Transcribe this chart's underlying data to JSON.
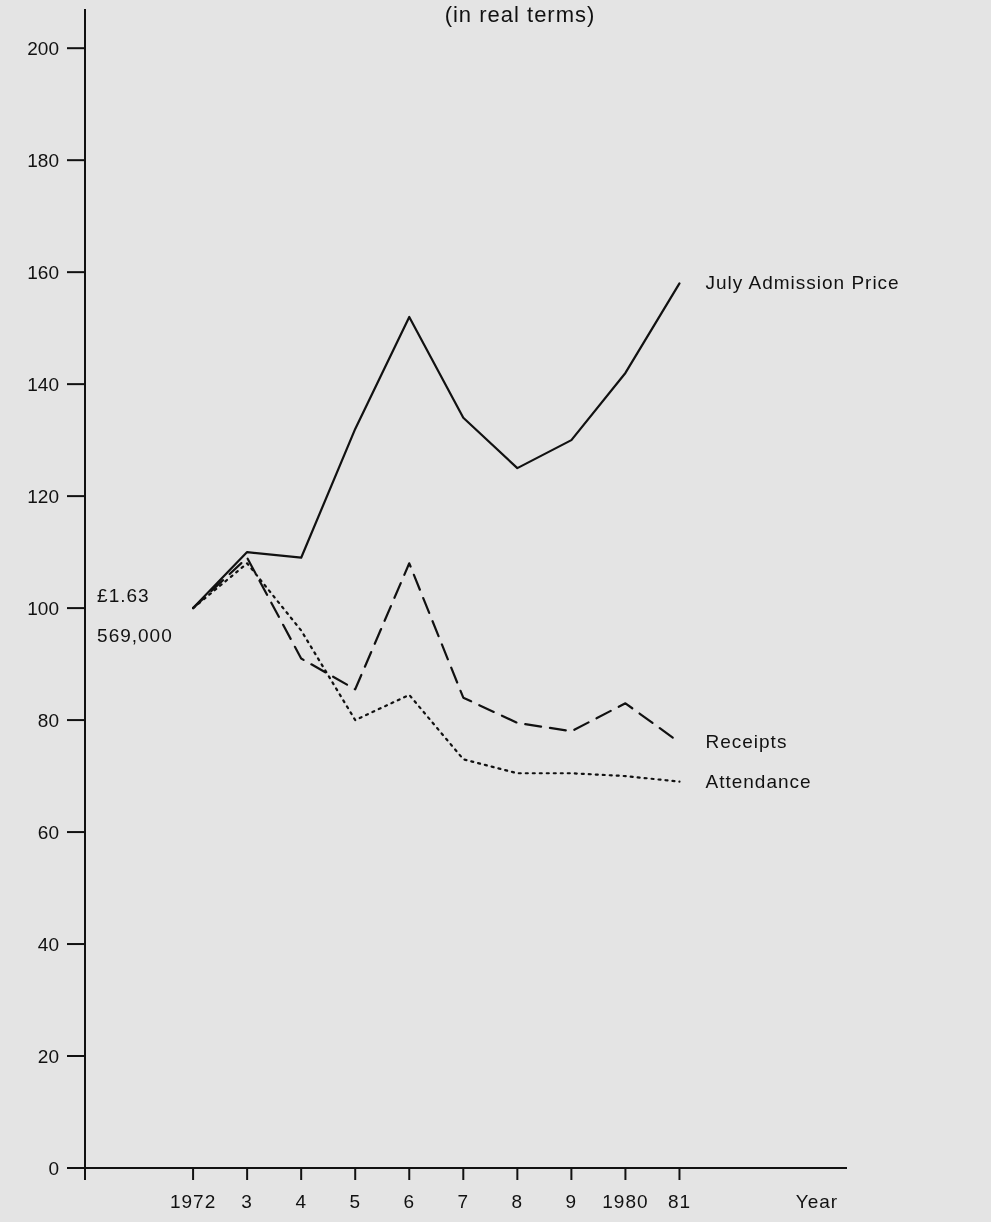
{
  "chart_data": {
    "type": "line",
    "title": "(in real terms)",
    "xlabel": "Year",
    "categories": [
      "1972",
      "3",
      "4",
      "5",
      "6",
      "7",
      "8",
      "9",
      "1980",
      "81"
    ],
    "ylim": [
      0,
      207
    ],
    "yticks": [
      0,
      20,
      40,
      60,
      80,
      100,
      120,
      140,
      160,
      180,
      200
    ],
    "series": [
      {
        "name": "July Admission Price",
        "color": "#111111",
        "line_style": "solid",
        "values": [
          100,
          110,
          109,
          132,
          152,
          134,
          125,
          130,
          142,
          158
        ]
      },
      {
        "name": "Receipts",
        "color": "#111111",
        "line_style": "dashed",
        "values": [
          100,
          109,
          91,
          85.5,
          108,
          84,
          79.5,
          78,
          83,
          76
        ]
      },
      {
        "name": "Attendance",
        "color": "#111111",
        "line_style": "dotted",
        "values": [
          100,
          108,
          96,
          80,
          84.5,
          73,
          70.5,
          70.5,
          70,
          69
        ]
      }
    ],
    "annotations": [
      {
        "text": "£1.63",
        "x": "1972",
        "y": 100
      },
      {
        "text": "569,000",
        "x": "1972",
        "y": 100
      }
    ],
    "grid": false,
    "marker": "none"
  }
}
